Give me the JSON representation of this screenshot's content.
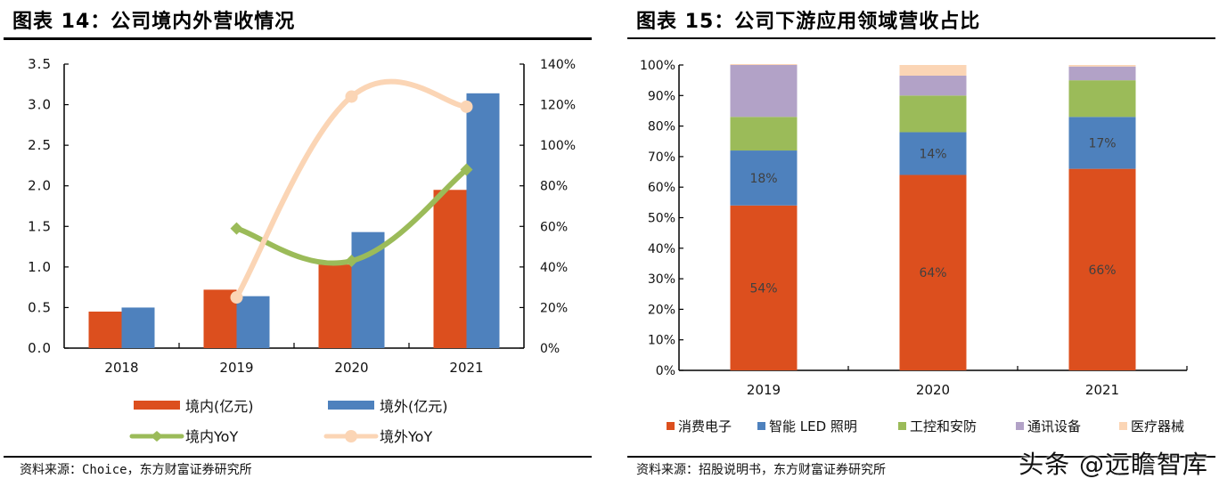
{
  "left_panel": {
    "title": "图表 14：公司境内外营收情况",
    "source": "资料来源：Choice，东方财富证券研究所"
  },
  "right_panel": {
    "title": "图表 15：公司下游应用领域营收占比",
    "source": "资料来源：招股说明书，东方财富证券研究所"
  },
  "watermark": "头条 @远瞻智库",
  "colors": {
    "domestic": "#DC4F1E",
    "overseas": "#4E81BD",
    "domestic_yoy": "#9BBB59",
    "overseas_yoy": "#FBD5B5",
    "consumer": "#DC4F1E",
    "led": "#4E81BD",
    "industrial": "#9BBB59",
    "telecom": "#B2A2C7",
    "medical": "#FBD5B5"
  },
  "chart_data": [
    {
      "type": "bar",
      "title": "公司境内外营收情况",
      "categories": [
        "2018",
        "2019",
        "2020",
        "2021"
      ],
      "series": [
        {
          "name": "境内(亿元)",
          "kind": "bar",
          "axis": "left",
          "values": [
            0.45,
            0.72,
            1.03,
            1.95
          ]
        },
        {
          "name": "境外(亿元)",
          "kind": "bar",
          "axis": "left",
          "values": [
            0.5,
            0.64,
            1.43,
            3.14
          ]
        },
        {
          "name": "境内YoY",
          "kind": "line",
          "axis": "right",
          "marker": "diamond",
          "values": [
            null,
            0.59,
            0.43,
            0.88
          ]
        },
        {
          "name": "境外YoY",
          "kind": "line",
          "axis": "right",
          "marker": "circle",
          "values": [
            null,
            0.25,
            1.24,
            1.19
          ]
        }
      ],
      "y_left": {
        "min": 0,
        "max": 3.5,
        "ticks": [
          "0.0",
          "0.5",
          "1.0",
          "1.5",
          "2.0",
          "2.5",
          "3.0",
          "3.5"
        ]
      },
      "y_right": {
        "min": 0,
        "max": 1.4,
        "ticks": [
          "0%",
          "20%",
          "40%",
          "60%",
          "80%",
          "100%",
          "120%",
          "140%"
        ]
      },
      "xlabel": "",
      "ylabel": "",
      "grid": false,
      "legend_position": "bottom"
    },
    {
      "type": "bar",
      "stacked": true,
      "title": "公司下游应用领域营收占比",
      "categories": [
        "2019",
        "2020",
        "2021"
      ],
      "series": [
        {
          "name": "消费电子",
          "values": [
            0.54,
            0.64,
            0.66
          ],
          "labels": [
            "54%",
            "64%",
            "66%"
          ]
        },
        {
          "name": "智能 LED 照明",
          "values": [
            0.18,
            0.14,
            0.17
          ],
          "labels": [
            "18%",
            "14%",
            "17%"
          ]
        },
        {
          "name": "工控和安防",
          "values": [
            0.11,
            0.12,
            0.12
          ],
          "labels": [
            null,
            null,
            null
          ]
        },
        {
          "name": "通讯设备",
          "values": [
            0.17,
            0.065,
            0.045
          ],
          "labels": [
            null,
            null,
            null
          ]
        },
        {
          "name": "医疗器械",
          "values": [
            0.003,
            0.035,
            0.005
          ],
          "labels": [
            null,
            null,
            null
          ]
        }
      ],
      "y": {
        "min": 0,
        "max": 1,
        "ticks": [
          "0%",
          "10%",
          "20%",
          "30%",
          "40%",
          "50%",
          "60%",
          "70%",
          "80%",
          "90%",
          "100%"
        ]
      },
      "xlabel": "",
      "ylabel": "",
      "grid": false,
      "legend_position": "bottom"
    }
  ]
}
